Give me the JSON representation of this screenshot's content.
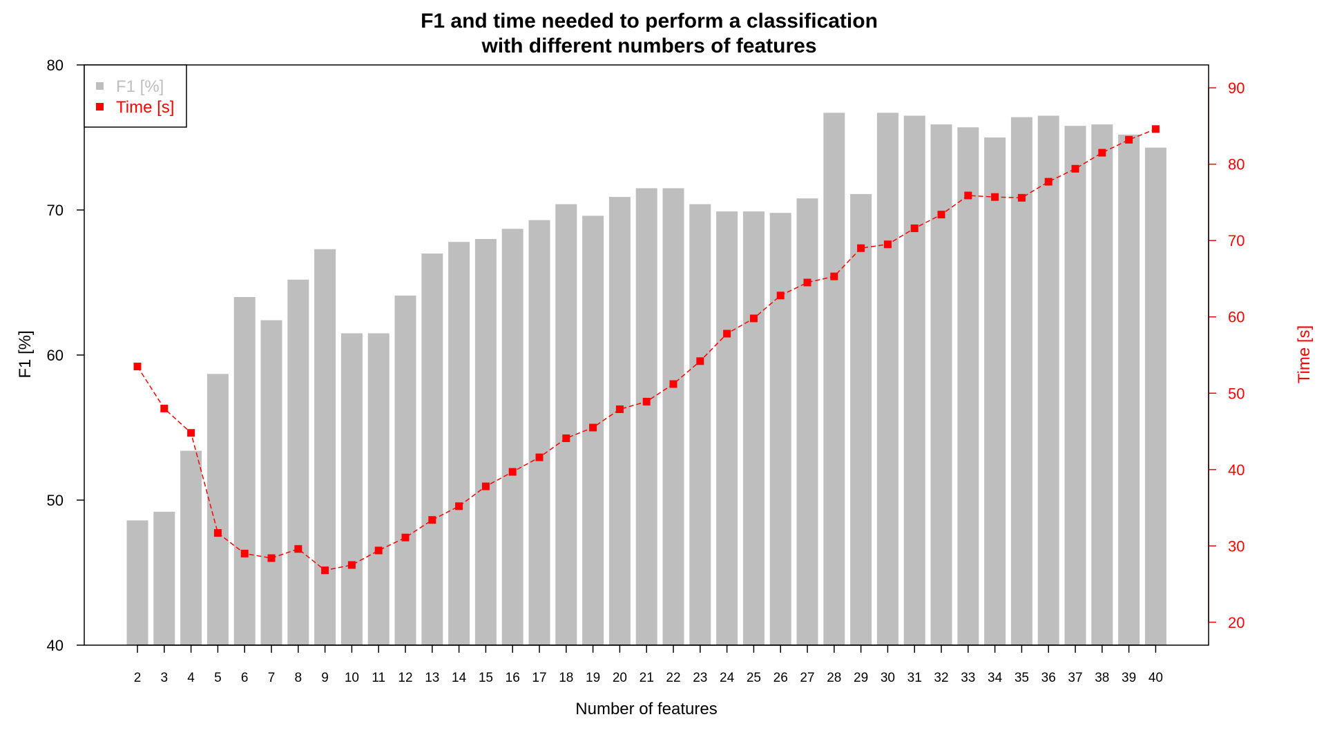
{
  "chart_data": {
    "type": "bar+line",
    "title_line1": "F1 and time needed to perform a classification",
    "title_line2": "with different numbers of features",
    "xlabel": "Number of features",
    "ylabel_left": "F1 [%]",
    "ylabel_right": "Time [s]",
    "categories": [
      "2",
      "3",
      "4",
      "5",
      "6",
      "7",
      "8",
      "9",
      "10",
      "11",
      "12",
      "13",
      "14",
      "15",
      "16",
      "17",
      "18",
      "19",
      "20",
      "21",
      "22",
      "23",
      "24",
      "25",
      "26",
      "27",
      "28",
      "29",
      "30",
      "31",
      "32",
      "33",
      "34",
      "35",
      "36",
      "37",
      "38",
      "39",
      "40"
    ],
    "series": [
      {
        "name": "F1 [%]",
        "type": "bar",
        "axis": "left",
        "color": "#bebebe",
        "values": [
          48.6,
          49.2,
          53.4,
          58.7,
          64.0,
          62.4,
          65.2,
          67.3,
          61.5,
          61.5,
          64.1,
          67.0,
          67.8,
          68.0,
          68.7,
          69.3,
          70.4,
          69.6,
          70.9,
          71.5,
          71.5,
          70.4,
          69.9,
          69.9,
          69.8,
          70.8,
          76.7,
          71.1,
          76.7,
          76.5,
          75.9,
          75.7,
          75.0,
          76.4,
          76.5,
          75.8,
          75.9,
          75.2,
          74.3
        ]
      },
      {
        "name": "Time [s]",
        "type": "line",
        "axis": "right",
        "color": "#ff0000",
        "values": [
          53.5,
          48.0,
          44.8,
          31.7,
          29.0,
          28.4,
          29.6,
          26.8,
          27.5,
          29.4,
          31.1,
          33.4,
          35.2,
          37.8,
          39.7,
          41.6,
          44.1,
          45.5,
          47.9,
          48.9,
          51.2,
          54.2,
          57.8,
          59.8,
          62.8,
          64.5,
          65.3,
          69.0,
          69.5,
          71.6,
          73.4,
          75.9,
          75.7,
          75.6,
          77.7,
          79.4,
          81.5,
          83.2,
          84.6
        ]
      }
    ],
    "ylim_left": [
      40,
      80
    ],
    "yticks_left": [
      "40",
      "50",
      "60",
      "70",
      "80"
    ],
    "ylim_right": [
      17,
      93
    ],
    "yticks_right": [
      "20",
      "30",
      "40",
      "50",
      "60",
      "70",
      "80",
      "90"
    ],
    "legend_position": "top-left",
    "grid": false
  }
}
